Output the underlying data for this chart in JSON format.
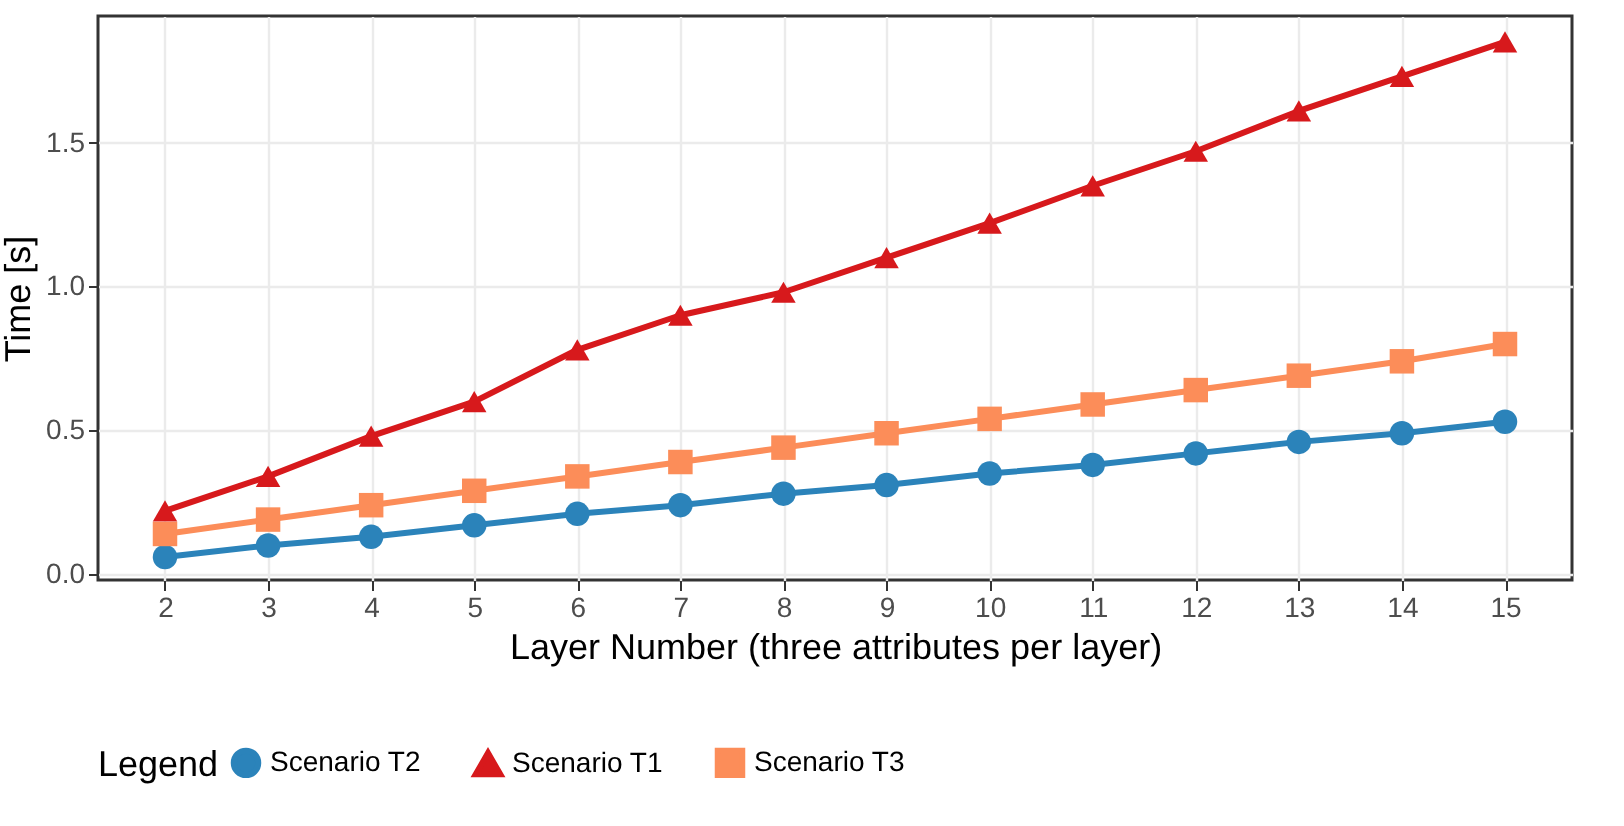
{
  "chart_data": {
    "type": "line",
    "xlabel": "Layer Number (three attributes per layer)",
    "ylabel": "Time [s]",
    "legend_title": "Legend",
    "x": [
      2,
      3,
      4,
      5,
      6,
      7,
      8,
      9,
      10,
      11,
      12,
      13,
      14,
      15
    ],
    "xlim": [
      1.35,
      15.65
    ],
    "xticks": [
      2,
      3,
      4,
      5,
      6,
      7,
      8,
      9,
      10,
      11,
      12,
      13,
      14,
      15
    ],
    "ylim": [
      -0.02,
      1.94
    ],
    "yticks": [
      {
        "value": 0,
        "label": "0.0"
      },
      0.5,
      {
        "value": 1,
        "label": "1.0"
      },
      1.5
    ],
    "grid": true,
    "legend": "bottom",
    "line_style": "solid",
    "series": [
      {
        "name": "Scenario T2",
        "color": "#2b83ba",
        "marker": "circle",
        "values": [
          0.06,
          0.1,
          0.13,
          0.17,
          0.21,
          0.24,
          0.28,
          0.31,
          0.35,
          0.38,
          0.42,
          0.46,
          0.49,
          0.53
        ]
      },
      {
        "name": "Scenario T1",
        "color": "#d7191c",
        "marker": "triangle",
        "values": [
          0.22,
          0.34,
          0.48,
          0.6,
          0.78,
          0.9,
          0.98,
          1.1,
          1.22,
          1.35,
          1.47,
          1.61,
          1.73,
          1.85
        ]
      },
      {
        "name": "Scenario T3",
        "color": "#fc8d59",
        "marker": "square",
        "values": [
          0.14,
          0.19,
          0.24,
          0.29,
          0.34,
          0.39,
          0.44,
          0.49,
          0.54,
          0.59,
          0.64,
          0.69,
          0.74,
          0.8
        ]
      }
    ]
  }
}
